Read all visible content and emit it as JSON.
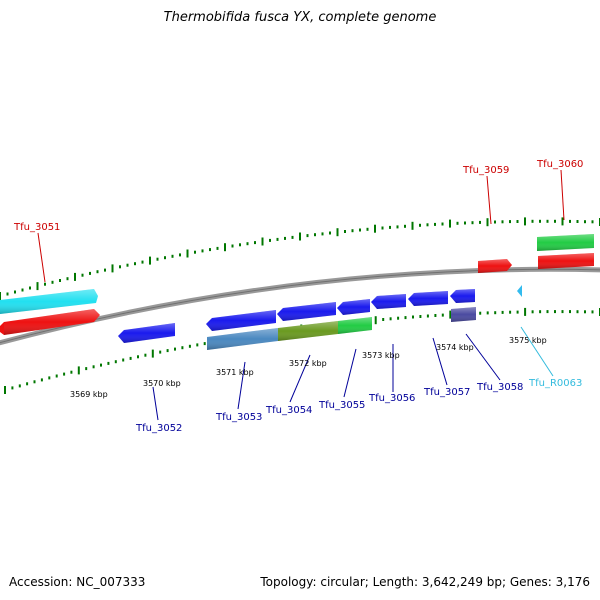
{
  "title": "Thermobifida fusca YX, complete genome",
  "footer": {
    "accession": "Accession: NC_007333",
    "summary": "Topology: circular; Length: 3,642,249 bp; Genes: 3,176"
  },
  "scale_labels": [
    "3569 kbp",
    "3570 kbp",
    "3571 kbp",
    "3572 kbp",
    "3573 kbp",
    "3574 kbp",
    "3575 kbp"
  ],
  "genes_top": [
    "Tfu_3051",
    "Tfu_3059",
    "Tfu_3060"
  ],
  "genes_bottom": [
    "Tfu_3052",
    "Tfu_3053",
    "Tfu_3054",
    "Tfu_3055",
    "Tfu_3056",
    "Tfu_3057",
    "Tfu_3058",
    "Tfu_R0063"
  ],
  "colors": {
    "label_top": "#cc0000",
    "label_bottom": "#000099",
    "label_rna": "#33bbdd",
    "gene_red": "#ee0000",
    "gene_cyan": "#22e0f0",
    "gene_green": "#22cc44",
    "gene_blue": "#1a1aee",
    "gene_steel": "#4a88c0",
    "gene_olive": "#6a9a20",
    "gene_indigo": "#4a4aa0",
    "backbone": "#888888",
    "tick": "#007700"
  }
}
